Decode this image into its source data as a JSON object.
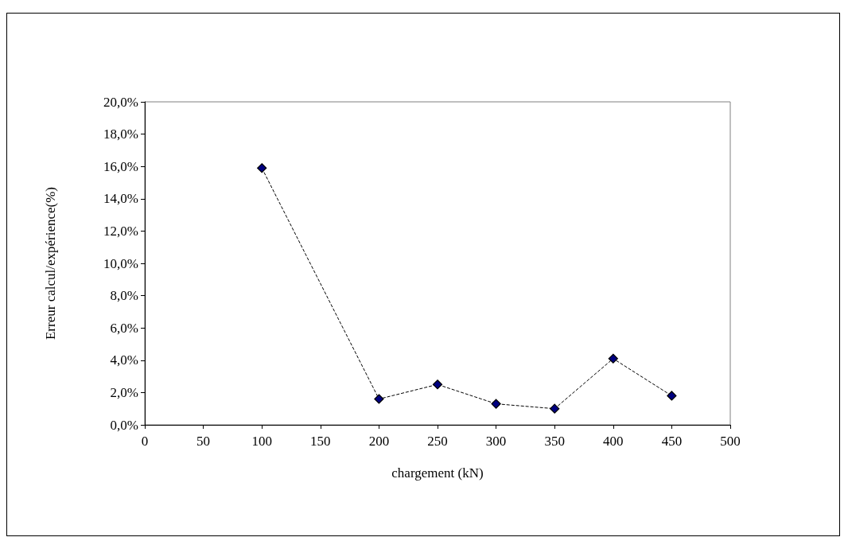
{
  "chart_data": {
    "type": "line",
    "xlabel": "chargement (kN)",
    "ylabel": "Erreur calcul/expérience(%)",
    "x": [
      100,
      200,
      250,
      300,
      350,
      400,
      450
    ],
    "series": [
      {
        "color": "#000080",
        "values": [
          15.9,
          1.6,
          2.5,
          1.3,
          1.0,
          4.1,
          1.8
        ]
      }
    ],
    "xlim": [
      0,
      500
    ],
    "xticks": [
      0,
      50,
      100,
      150,
      200,
      250,
      300,
      350,
      400,
      450,
      500
    ],
    "ylim": [
      0,
      20
    ],
    "yticks": [
      {
        "value": 0,
        "label": "0,0%"
      },
      {
        "value": 2,
        "label": "2,0%"
      },
      {
        "value": 4,
        "label": "4,0%"
      },
      {
        "value": 6,
        "label": "6,0%"
      },
      {
        "value": 8,
        "label": "8,0%"
      },
      {
        "value": 10,
        "label": "10,0%"
      },
      {
        "value": 12,
        "label": "12,0%"
      },
      {
        "value": 14,
        "label": "14,0%"
      },
      {
        "value": 16,
        "label": "16,0%"
      },
      {
        "value": 18,
        "label": "18,0%"
      },
      {
        "value": 20,
        "label": "20,0%"
      }
    ],
    "grid": false,
    "marker": "diamond",
    "line_style": "dashed"
  }
}
